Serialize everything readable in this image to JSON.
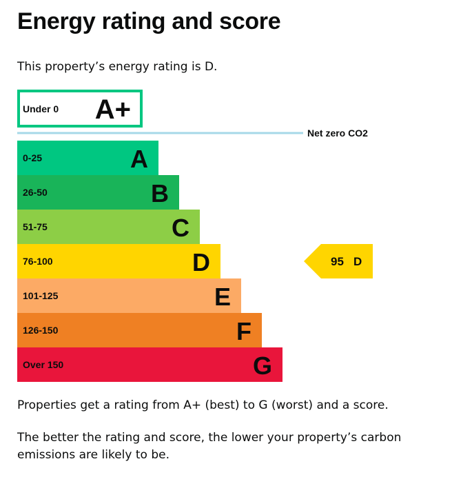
{
  "page": {
    "title": "Energy rating and score",
    "intro": "This property’s energy rating is D.",
    "note1": "Properties get a rating from A+ (best) to G (worst) and a score.",
    "note2": "The better the rating and score, the lower your property’s carbon emissions are likely to be."
  },
  "chart_data": {
    "type": "bar",
    "categories": [
      "A+",
      "A",
      "B",
      "C",
      "D",
      "E",
      "F",
      "G"
    ],
    "ranges": [
      "Under 0",
      "0-25",
      "26-50",
      "51-75",
      "76-100",
      "101-125",
      "126-150",
      "Over 150"
    ],
    "colors": [
      "#ffffff",
      "#00c781",
      "#19b459",
      "#8dce46",
      "#ffd500",
      "#fcaa65",
      "#ef8023",
      "#e9153b"
    ],
    "outline_color": "#00c781",
    "net_zero_label": "Net zero CO2",
    "net_zero_line_color": "#a6d8e8",
    "current": {
      "score": 95,
      "score_text": "95",
      "rating": "D",
      "color": "#ffd500"
    }
  }
}
